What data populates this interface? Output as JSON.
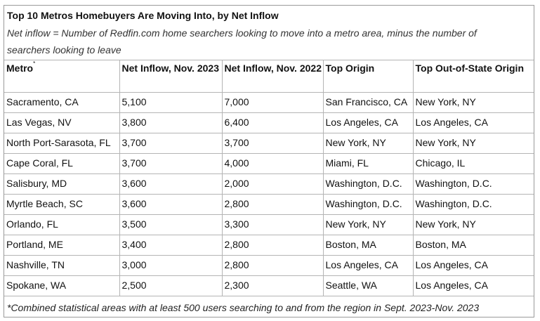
{
  "title": "Top 10 Metros Homebuyers Are Moving Into, by Net Inflow",
  "subtitle": "Net inflow = Number of Redfin.com home searchers looking to move into a metro area, minus the number of searchers looking to leave",
  "headers": {
    "metro": "Metro",
    "metro_marker": "*",
    "net_2023": "Net Inflow, Nov. 2023",
    "net_2022": "Net Inflow, Nov. 2022",
    "top_origin": "Top Origin",
    "top_oos_origin": "Top Out-of-State Origin"
  },
  "rows": [
    {
      "metro": "Sacramento, CA",
      "net_2023": "5,100",
      "net_2022": "7,000",
      "top_origin": "San Francisco, CA",
      "top_oos_origin": "New York, NY"
    },
    {
      "metro": "Las Vegas, NV",
      "net_2023": "3,800",
      "net_2022": "6,400",
      "top_origin": "Los Angeles, CA",
      "top_oos_origin": "Los Angeles, CA"
    },
    {
      "metro": "North Port-Sarasota, FL",
      "net_2023": "3,700",
      "net_2022": "3,700",
      "top_origin": "New York, NY",
      "top_oos_origin": "New York, NY"
    },
    {
      "metro": "Cape Coral, FL",
      "net_2023": "3,700",
      "net_2022": "4,000",
      "top_origin": "Miami, FL",
      "top_oos_origin": "Chicago, IL"
    },
    {
      "metro": "Salisbury, MD",
      "net_2023": "3,600",
      "net_2022": "2,000",
      "top_origin": "Washington, D.C.",
      "top_oos_origin": "Washington, D.C."
    },
    {
      "metro": "Myrtle Beach, SC",
      "net_2023": "3,600",
      "net_2022": "2,800",
      "top_origin": "Washington, D.C.",
      "top_oos_origin": "Washington, D.C."
    },
    {
      "metro": "Orlando, FL",
      "net_2023": "3,500",
      "net_2022": "3,300",
      "top_origin": "New York, NY",
      "top_oos_origin": "New York, NY"
    },
    {
      "metro": "Portland, ME",
      "net_2023": "3,400",
      "net_2022": "2,800",
      "top_origin": "Boston, MA",
      "top_oos_origin": "Boston, MA"
    },
    {
      "metro": "Nashville, TN",
      "net_2023": "3,000",
      "net_2022": "2,800",
      "top_origin": "Los Angeles, CA",
      "top_oos_origin": "Los Angeles, CA"
    },
    {
      "metro": "Spokane, WA",
      "net_2023": "2,500",
      "net_2022": "2,300",
      "top_origin": "Seattle, WA",
      "top_oos_origin": "Los Angeles, CA"
    }
  ],
  "footnote": "*Combined statistical areas with at least 500 users searching to and from the region in Sept. 2023-Nov. 2023"
}
